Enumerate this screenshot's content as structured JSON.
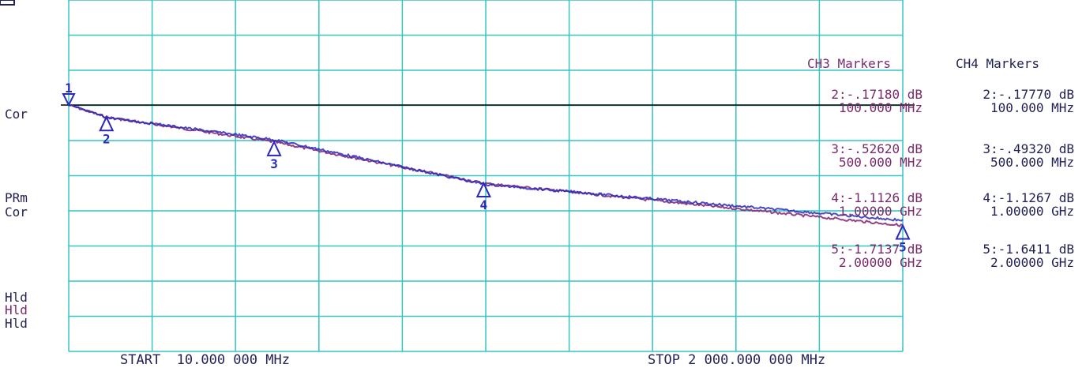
{
  "colors": {
    "grid": "#33c4c4",
    "trace_ch3": "#8a2c7a",
    "trace_ch4": "#2a2ab8",
    "reference_line": "#000000",
    "status_text": "#222255",
    "ch3_text": "#7a2a6a",
    "ch4_text": "#222255"
  },
  "left_status": {
    "cor_top": "Cor",
    "prm": "PRm",
    "cor_mid": "Cor",
    "hld1": "Hld",
    "hld2": "Hld",
    "hld3": "Hld"
  },
  "footer": {
    "start": "START  10.000 000 MHz",
    "stop": "STOP 2 000.000 000 MHz"
  },
  "ch3_markers": {
    "title": "CH3 Markers",
    "entries": [
      {
        "value": "2:-.17180 dB",
        "freq": "100.000 MHz"
      },
      {
        "value": "3:-.52620 dB",
        "freq": "500.000 MHz"
      },
      {
        "value": "4:-1.1126 dB",
        "freq": "1.00000 GHz"
      },
      {
        "value": "5:-1.7137 dB",
        "freq": "2.00000 GHz"
      }
    ]
  },
  "ch4_markers": {
    "title": "CH4 Markers",
    "entries": [
      {
        "value": "2:-.17770 dB",
        "freq": "100.000 MHz"
      },
      {
        "value": "3:-.49320 dB",
        "freq": "500.000 MHz"
      },
      {
        "value": "4:-1.1267 dB",
        "freq": "1.00000 GHz"
      },
      {
        "value": "5:-1.6411 dB",
        "freq": "2.00000 GHz"
      }
    ]
  },
  "chart_data": {
    "type": "line",
    "title": "",
    "xlabel": "",
    "ylabel": "",
    "x_unit": "MHz",
    "y_unit": "dB",
    "xlim": [
      10,
      2000
    ],
    "grid": true,
    "reference_level_db": 0,
    "series": [
      {
        "name": "CH3",
        "x": [
          10,
          100,
          500,
          1000,
          2000
        ],
        "y": [
          0,
          -0.1718,
          -0.5262,
          -1.1126,
          -1.7137
        ]
      },
      {
        "name": "CH4",
        "x": [
          10,
          100,
          500,
          1000,
          2000
        ],
        "y": [
          0,
          -0.1777,
          -0.4932,
          -1.1267,
          -1.6411
        ]
      }
    ],
    "markers": [
      {
        "label": "1",
        "x": 10,
        "y": 0
      },
      {
        "label": "2",
        "x": 100,
        "y": -0.1718
      },
      {
        "label": "3",
        "x": 500,
        "y": -0.5262
      },
      {
        "label": "4",
        "x": 1000,
        "y": -1.1126
      },
      {
        "label": "5",
        "x": 2000,
        "y": -1.7137
      }
    ]
  }
}
